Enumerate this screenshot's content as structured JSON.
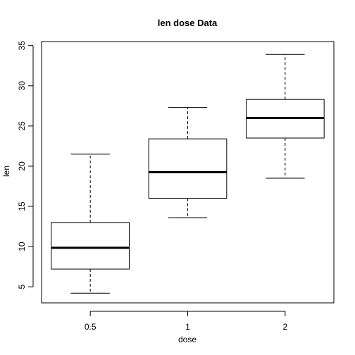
{
  "chart_data": {
    "type": "boxplot",
    "title": "len dose Data",
    "xlabel": "dose",
    "ylabel": "len",
    "ylim": [
      3.0,
      35.5
    ],
    "yticks": [
      5,
      10,
      15,
      20,
      25,
      30,
      35
    ],
    "grid": false,
    "categories": [
      "0.5",
      "1",
      "2"
    ],
    "boxes": [
      {
        "category": "0.5",
        "min": 4.2,
        "q1": 7.2,
        "median": 9.85,
        "q3": 13.0,
        "max": 21.5
      },
      {
        "category": "1",
        "min": 13.6,
        "q1": 16.0,
        "median": 19.25,
        "q3": 23.4,
        "max": 27.3
      },
      {
        "category": "2",
        "min": 18.5,
        "q1": 23.5,
        "median": 26.0,
        "q3": 28.3,
        "max": 33.9
      }
    ]
  }
}
